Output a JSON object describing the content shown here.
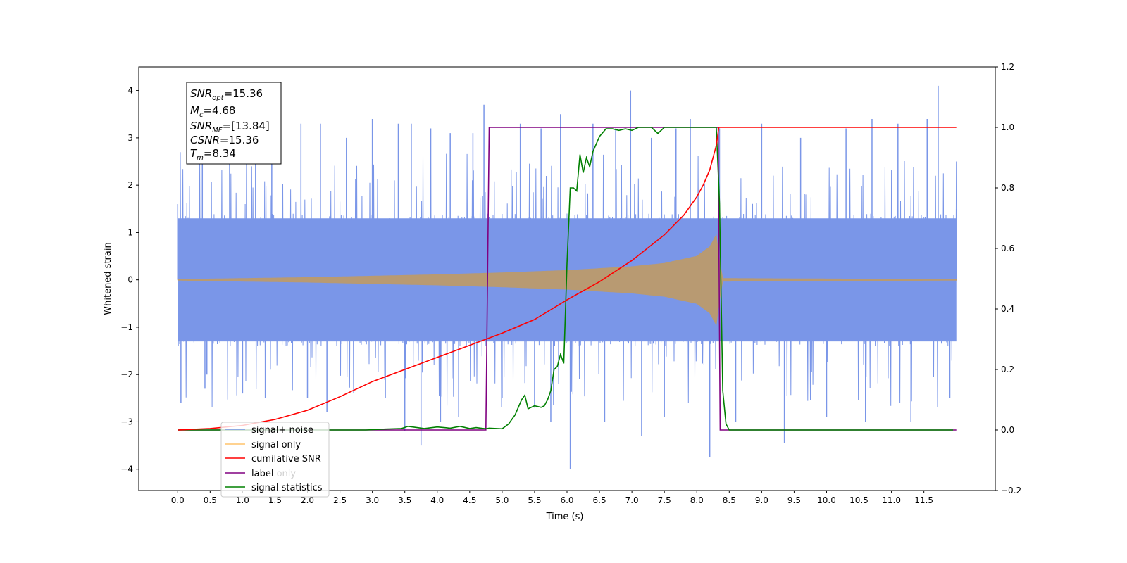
{
  "chart_data": {
    "type": "line",
    "xlabel": "Time (s)",
    "ylabel": "Whitened strain",
    "xlim": [
      -0.6,
      12.6
    ],
    "ylim": [
      -4.45,
      4.5
    ],
    "y2lim": [
      -0.2,
      1.2
    ],
    "x_ticks": [
      "0.0",
      "0.5",
      "1.0",
      "1.5",
      "2.0",
      "2.5",
      "3.0",
      "3.5",
      "4.0",
      "4.5",
      "5.0",
      "5.5",
      "6.0",
      "6.5",
      "7.0",
      "7.5",
      "8.0",
      "8.5",
      "9.0",
      "9.5",
      "10.0",
      "10.5",
      "11.0",
      "11.5"
    ],
    "y_ticks": [
      "4",
      "3",
      "2",
      "1",
      "0",
      "−1",
      "−2",
      "−3",
      "−4"
    ],
    "y2_ticks": [
      "1.2",
      "1.0",
      "0.8",
      "0.6",
      "0.4",
      "0.2",
      "0.0",
      "−0.2"
    ],
    "annotation": {
      "snr_opt_label": "SNR",
      "snr_opt_sub": "opt",
      "snr_opt_value": "=15.36",
      "mc_label": "M",
      "mc_sub": "c",
      "mc_value": "=4.68",
      "snr_mf_label": "SNR",
      "snr_mf_sub": "MF",
      "snr_mf_value": "=[13.84]",
      "csnr_label": "CSNR",
      "csnr_value": "=15.36",
      "tm_label": "T",
      "tm_sub": "m",
      "tm_value": "=8.34"
    },
    "legend": {
      "placement": "lower-left",
      "entries": [
        "signal+ noise",
        "signal only",
        "cumilative SNR",
        "label",
        "signal statistics"
      ],
      "hidden_text": "label only"
    },
    "colors": {
      "noise": "#7a96e8",
      "signal": "#b89a72",
      "signal_legend": "#ffc46b",
      "snr": "#ff0000",
      "label": "#800080",
      "stats": "#008000"
    },
    "series": [
      {
        "name": "cumilative SNR",
        "axis": "right",
        "x": [
          0,
          0.5,
          1.0,
          1.5,
          2.0,
          2.5,
          3.0,
          3.5,
          4.0,
          4.5,
          5.0,
          5.5,
          6.0,
          6.5,
          7.0,
          7.5,
          7.8,
          8.0,
          8.1,
          8.2,
          8.3,
          8.34,
          8.5,
          9.0,
          10.0,
          11.0,
          12.0
        ],
        "values": [
          0.0,
          0.005,
          0.015,
          0.035,
          0.065,
          0.11,
          0.16,
          0.2,
          0.24,
          0.28,
          0.32,
          0.365,
          0.43,
          0.49,
          0.56,
          0.645,
          0.71,
          0.77,
          0.81,
          0.86,
          0.94,
          1.0,
          1.0,
          1.0,
          1.0,
          1.0,
          1.0
        ]
      },
      {
        "name": "label",
        "axis": "right",
        "x": [
          0,
          4.75,
          4.8,
          8.33,
          8.36,
          12.0
        ],
        "values": [
          0,
          0,
          1,
          1,
          0,
          0
        ]
      },
      {
        "name": "signal statistics",
        "axis": "right",
        "x": [
          0,
          2.9,
          3.2,
          3.45,
          3.55,
          3.8,
          4.0,
          4.2,
          4.35,
          4.5,
          4.6,
          4.75,
          4.8,
          5.0,
          5.1,
          5.2,
          5.3,
          5.35,
          5.4,
          5.5,
          5.6,
          5.65,
          5.7,
          5.75,
          5.8,
          5.85,
          5.9,
          5.95,
          6.0,
          6.05,
          6.1,
          6.15,
          6.2,
          6.25,
          6.3,
          6.35,
          6.4,
          6.5,
          6.6,
          6.7,
          6.8,
          6.9,
          7.0,
          7.1,
          7.2,
          7.3,
          7.4,
          7.5,
          7.6,
          7.8,
          8.0,
          8.2,
          8.3,
          8.35,
          8.4,
          8.45,
          8.5,
          9.0,
          10.0,
          11.0,
          11.95
        ],
        "values": [
          0,
          0,
          0.003,
          0.005,
          0.012,
          0.005,
          0.01,
          0.006,
          0.012,
          0.005,
          0.008,
          0.004,
          0.006,
          0.004,
          0.02,
          0.05,
          0.1,
          0.115,
          0.07,
          0.08,
          0.075,
          0.08,
          0.1,
          0.13,
          0.2,
          0.21,
          0.25,
          0.22,
          0.55,
          0.8,
          0.8,
          0.79,
          0.91,
          0.85,
          0.9,
          0.87,
          0.92,
          0.97,
          0.995,
          0.995,
          0.99,
          0.995,
          0.99,
          1.0,
          1.0,
          1.0,
          0.98,
          1.0,
          1.0,
          1.0,
          1.0,
          1.0,
          1.0,
          0.75,
          0.13,
          0.02,
          0.0,
          0.0,
          0.0,
          0.0,
          0.0
        ]
      },
      {
        "name": "signal only",
        "axis": "left",
        "envelope_x": [
          0,
          1.0,
          2.0,
          3.0,
          4.0,
          5.0,
          6.0,
          7.0,
          7.5,
          8.0,
          8.2,
          8.3,
          8.34,
          8.4,
          12.0
        ],
        "envelope_values": [
          0.01,
          0.03,
          0.05,
          0.08,
          0.11,
          0.15,
          0.2,
          0.28,
          0.35,
          0.5,
          0.7,
          0.95,
          0.5,
          0.03,
          0.01
        ]
      },
      {
        "name": "signal+ noise",
        "axis": "left",
        "band_values": [
          1.3,
          -1.3
        ],
        "x": [
          0.0,
          0.05,
          0.38,
          0.42,
          0.45,
          0.8,
          1.0,
          1.2,
          1.35,
          1.45,
          1.9,
          2.2,
          2.0,
          2.3,
          2.6,
          3.0,
          3.2,
          3.4,
          3.5,
          3.6,
          3.75,
          3.9,
          4.05,
          4.2,
          4.33,
          4.55,
          4.72,
          5.0,
          5.28,
          5.5,
          5.6,
          5.75,
          5.9,
          6.05,
          6.4,
          6.58,
          6.75,
          6.98,
          7.15,
          7.3,
          7.5,
          7.68,
          7.9,
          8.2,
          8.35,
          8.6,
          9.0,
          9.35,
          9.6,
          10.0,
          10.3,
          10.6,
          10.7,
          11.1,
          11.3,
          11.55,
          11.72,
          11.9,
          12.0
        ],
        "values": [
          1.6,
          -2.6,
          3.2,
          -2.3,
          -2.0,
          2.7,
          -2.4,
          3.0,
          -2.5,
          3.1,
          3.3,
          3.3,
          -2.5,
          -2.8,
          3.0,
          3.4,
          -2.5,
          3.3,
          -3.2,
          3.3,
          -3.5,
          3.2,
          -3.0,
          3.1,
          -2.9,
          3.1,
          3.7,
          -2.5,
          3.3,
          -2.7,
          3.2,
          -3.0,
          3.5,
          -4.0,
          3.3,
          -3.0,
          3.2,
          4.0,
          -3.3,
          3.0,
          -2.9,
          3.2,
          3.4,
          -3.75,
          3.2,
          -3.0,
          3.3,
          -3.45,
          3.0,
          -2.9,
          3.2,
          -3.0,
          3.4,
          3.3,
          -3.0,
          3.4,
          4.1,
          -2.5,
          1.5
        ]
      }
    ]
  }
}
